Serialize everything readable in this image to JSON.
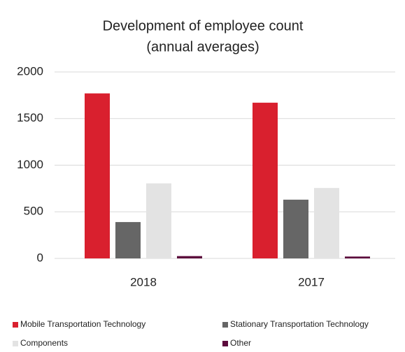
{
  "chart_data": {
    "type": "bar",
    "title": "Development of employee count",
    "subtitle": "(annual averages)",
    "categories": [
      "2018",
      "2017"
    ],
    "series": [
      {
        "name": "Mobile Transportation Technology",
        "color": "#d9202e",
        "values": [
          1770,
          1670
        ]
      },
      {
        "name": "Stationary Transportation Technology",
        "color": "#666666",
        "values": [
          390,
          630
        ]
      },
      {
        "name": "Components",
        "color": "#e3e3e3",
        "values": [
          805,
          755
        ]
      },
      {
        "name": "Other",
        "color": "#5c0a3c",
        "values": [
          25,
          20
        ]
      }
    ],
    "ylim": [
      0,
      2000
    ],
    "yticks": [
      0,
      500,
      1000,
      1500,
      2000
    ],
    "grid": true
  }
}
